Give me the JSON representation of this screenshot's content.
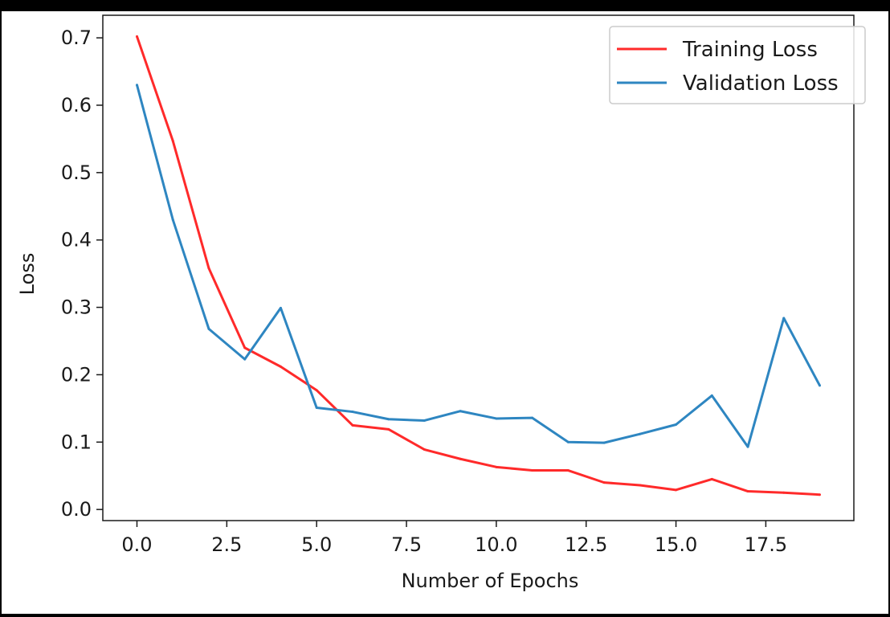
{
  "chart_data": {
    "type": "line",
    "title": "",
    "xlabel": "Number of Epochs",
    "ylabel": "Loss",
    "xlim": [
      -0.95,
      19.95
    ],
    "ylim": [
      -0.0165,
      0.7335
    ],
    "xticks": [
      0.0,
      2.5,
      5.0,
      7.5,
      10.0,
      12.5,
      15.0,
      17.5
    ],
    "xtick_labels": [
      "0.0",
      "2.5",
      "5.0",
      "7.5",
      "10.0",
      "12.5",
      "15.0",
      "17.5"
    ],
    "yticks": [
      0.0,
      0.1,
      0.2,
      0.3,
      0.4,
      0.5,
      0.6,
      0.7
    ],
    "ytick_labels": [
      "0.0",
      "0.1",
      "0.2",
      "0.3",
      "0.4",
      "0.5",
      "0.6",
      "0.7"
    ],
    "grid": false,
    "legend_position": "top-right",
    "x": [
      0,
      1,
      2,
      3,
      4,
      5,
      6,
      7,
      8,
      9,
      10,
      11,
      12,
      13,
      14,
      15,
      16,
      17,
      18,
      19
    ],
    "series": [
      {
        "name": "Training Loss",
        "color": "#ff2a2a",
        "values": [
          0.702,
          0.547,
          0.358,
          0.24,
          0.212,
          0.177,
          0.125,
          0.119,
          0.089,
          0.075,
          0.063,
          0.058,
          0.058,
          0.04,
          0.036,
          0.029,
          0.045,
          0.027,
          0.025,
          0.022
        ]
      },
      {
        "name": "Validation Loss",
        "color": "#2e86c1",
        "values": [
          0.63,
          0.43,
          0.268,
          0.223,
          0.299,
          0.151,
          0.145,
          0.134,
          0.132,
          0.146,
          0.135,
          0.136,
          0.1,
          0.099,
          0.112,
          0.126,
          0.169,
          0.093,
          0.284,
          0.184
        ]
      }
    ]
  }
}
